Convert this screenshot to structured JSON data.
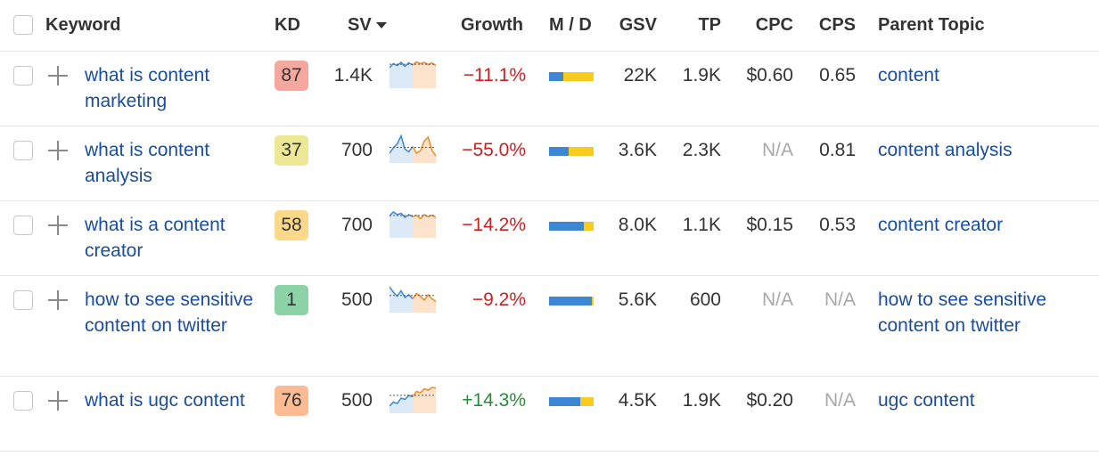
{
  "header": {
    "keyword": "Keyword",
    "kd": "KD",
    "sv": "SV",
    "growth": "Growth",
    "md": "M / D",
    "gsv": "GSV",
    "tp": "TP",
    "cpc": "CPC",
    "cps": "CPS",
    "parent_topic": "Parent Topic"
  },
  "colors": {
    "link": "#1a4d9c",
    "negative": "#d01e1e",
    "positive": "#2a8a3a",
    "na": "#a8a8a8",
    "kd_red": "#f7a89e",
    "kd_yellow": "#ece896",
    "kd_orange": "#fcd88a",
    "kd_green": "#8ed3a7",
    "kd_salmon": "#fdbb94",
    "md_mobile": "#3b87d6",
    "md_desktop": "#f7cc1c"
  },
  "rows": [
    {
      "keyword": "what is content marketing",
      "kd": "87",
      "kd_color": "#f7a89e",
      "sv": "1.4K",
      "growth": "−11.1%",
      "growth_positive": false,
      "md_mobile_fraction": 0.32,
      "gsv": "22K",
      "tp": "1.9K",
      "cpc": "$0.60",
      "cpc_na": false,
      "cps": "0.65",
      "cps_na": false,
      "parent_topic": "content",
      "trend": [
        0.7,
        0.85,
        0.78,
        0.9,
        0.75,
        0.88,
        0.8,
        0.92,
        0.85,
        0.9,
        0.82,
        0.88,
        0.78
      ]
    },
    {
      "keyword": "what is content analysis",
      "kd": "37",
      "kd_color": "#ece896",
      "sv": "700",
      "growth": "−55.0%",
      "growth_positive": false,
      "md_mobile_fraction": 0.44,
      "gsv": "3.6K",
      "tp": "2.3K",
      "cpc": "N/A",
      "cpc_na": true,
      "cps": "0.81",
      "cps_na": false,
      "parent_topic": "content analysis",
      "trend": [
        0.3,
        0.5,
        0.65,
        0.95,
        0.45,
        0.35,
        0.55,
        0.3,
        0.4,
        0.75,
        0.9,
        0.4,
        0.2
      ]
    },
    {
      "keyword": "what is a content creator",
      "kd": "58",
      "kd_color": "#fcd88a",
      "sv": "700",
      "growth": "−14.2%",
      "growth_positive": false,
      "md_mobile_fraction": 0.78,
      "gsv": "8.0K",
      "tp": "1.1K",
      "cpc": "$0.15",
      "cpc_na": false,
      "cps": "0.53",
      "cps_na": false,
      "parent_topic": "content creator",
      "trend": [
        0.75,
        0.9,
        0.8,
        0.85,
        0.7,
        0.8,
        0.72,
        0.78,
        0.65,
        0.8,
        0.72,
        0.78,
        0.7
      ]
    },
    {
      "keyword": "how to see sensitive content on twitter",
      "kd": "1",
      "kd_color": "#8ed3a7",
      "sv": "500",
      "growth": "−9.2%",
      "growth_positive": false,
      "md_mobile_fraction": 0.96,
      "gsv": "5.6K",
      "tp": "600",
      "cpc": "N/A",
      "cpc_na": true,
      "cps": "N/A",
      "cps_na": true,
      "parent_topic": "how to see sensitive content on twitter",
      "trend": [
        0.9,
        0.7,
        0.55,
        0.75,
        0.5,
        0.6,
        0.45,
        0.65,
        0.55,
        0.4,
        0.6,
        0.45,
        0.35
      ]
    },
    {
      "keyword": "what is ugc content",
      "kd": "76",
      "kd_color": "#fdbb94",
      "sv": "500",
      "growth": "+14.3%",
      "growth_positive": true,
      "md_mobile_fraction": 0.7,
      "gsv": "4.5K",
      "tp": "1.9K",
      "cpc": "$0.20",
      "cpc_na": false,
      "cps": "N/A",
      "cps_na": true,
      "parent_topic": "ugc content",
      "trend": [
        0.2,
        0.35,
        0.3,
        0.5,
        0.45,
        0.6,
        0.55,
        0.75,
        0.7,
        0.85,
        0.8,
        0.9,
        0.88
      ]
    }
  ]
}
